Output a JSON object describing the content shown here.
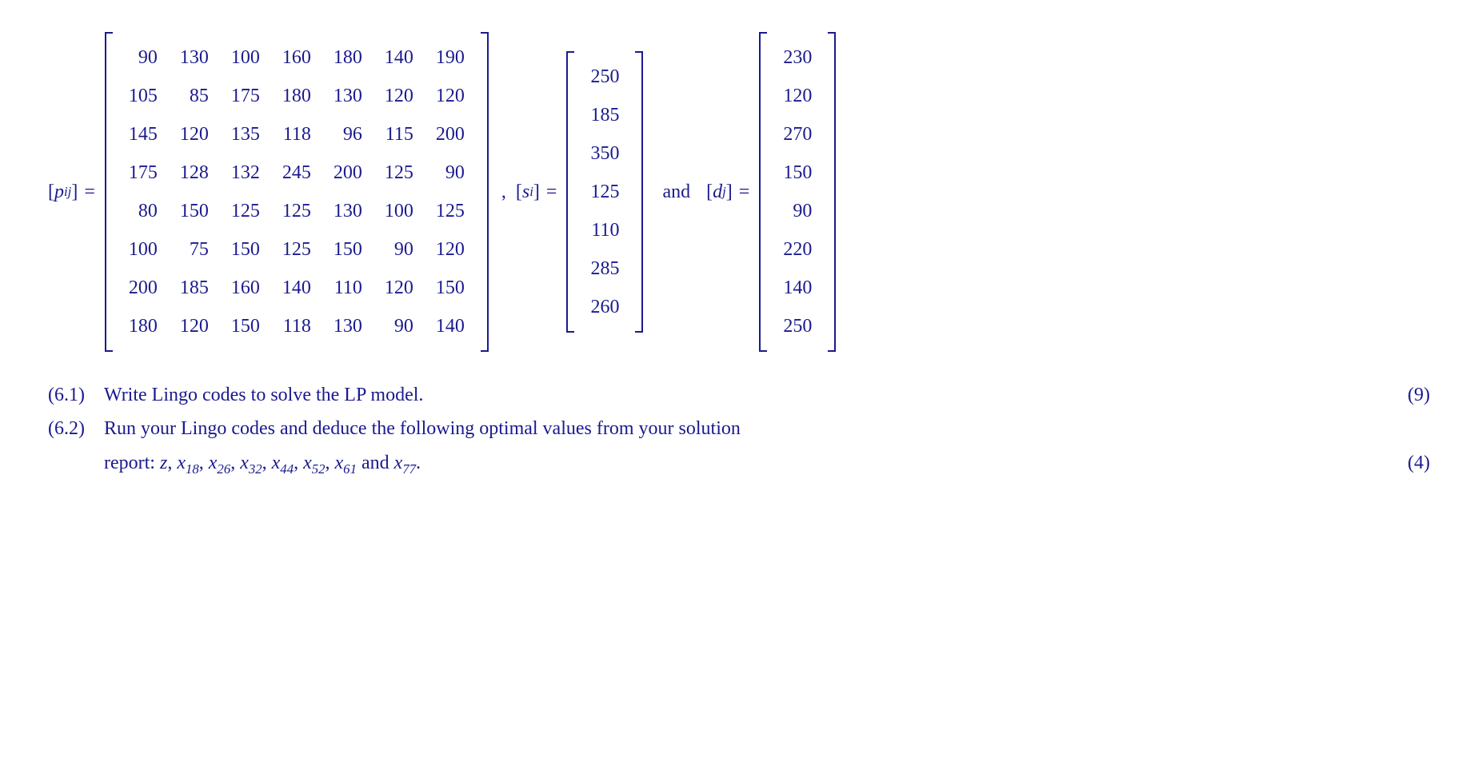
{
  "colors": {
    "text": "#1a1a8f",
    "background": "#ffffff"
  },
  "typography": {
    "font_family": "Times New Roman",
    "base_fontsize": 24
  },
  "equation": {
    "p_label_var": "p",
    "p_label_sub": "ij",
    "s_label_var": "s",
    "s_label_sub": "i",
    "d_label_var": "d",
    "d_label_sub": "j",
    "equals": "=",
    "comma": ",",
    "and": "and"
  },
  "matrices": {
    "p": {
      "rows": 8,
      "cols": 7,
      "cell_padding": "6px 14px",
      "data": [
        [
          90,
          130,
          100,
          160,
          180,
          140,
          190
        ],
        [
          105,
          85,
          175,
          180,
          130,
          120,
          120
        ],
        [
          145,
          120,
          135,
          118,
          96,
          115,
          200
        ],
        [
          175,
          128,
          132,
          245,
          200,
          125,
          90
        ],
        [
          80,
          150,
          125,
          125,
          130,
          100,
          125
        ],
        [
          100,
          75,
          150,
          125,
          150,
          90,
          120
        ],
        [
          200,
          185,
          160,
          140,
          110,
          120,
          150
        ],
        [
          180,
          120,
          150,
          118,
          130,
          90,
          140
        ]
      ]
    },
    "s": {
      "rows": 7,
      "cols": 1,
      "data": [
        250,
        185,
        350,
        125,
        110,
        285,
        260
      ]
    },
    "d": {
      "rows": 8,
      "cols": 1,
      "data": [
        230,
        120,
        270,
        150,
        90,
        220,
        140,
        250
      ]
    }
  },
  "questions": {
    "q1": {
      "num": "(6.1)",
      "text": "Write Lingo codes to solve the LP model.",
      "marks": "(9)"
    },
    "q2": {
      "num": "(6.2)",
      "text_pre": "Run your Lingo codes and deduce the following optimal values from your solution",
      "text_line2_pre": "report: ",
      "vars": [
        {
          "v": "z",
          "s": ""
        },
        {
          "v": "x",
          "s": "18"
        },
        {
          "v": "x",
          "s": "26"
        },
        {
          "v": "x",
          "s": "32"
        },
        {
          "v": "x",
          "s": "44"
        },
        {
          "v": "x",
          "s": "52"
        },
        {
          "v": "x",
          "s": "61"
        }
      ],
      "var_and": " and ",
      "var_last": {
        "v": "x",
        "s": "77"
      },
      "period": ".",
      "marks": "(4)"
    }
  }
}
